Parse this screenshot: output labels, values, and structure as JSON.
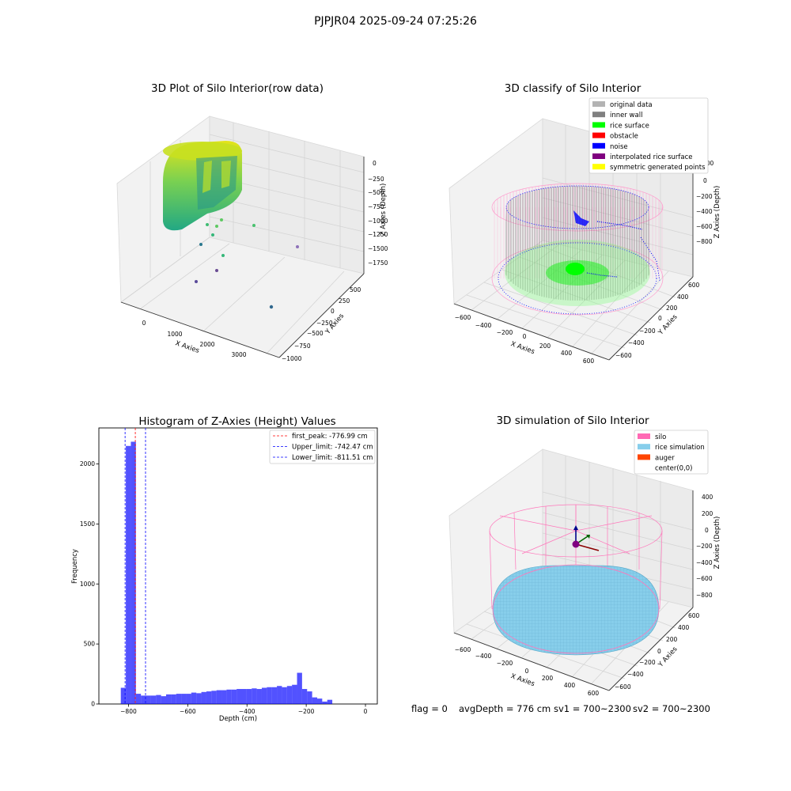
{
  "suptitle": "PJPJR04 2025-09-24 07:25:26",
  "panels": {
    "raw": {
      "title": "3D Plot of Silo Interior(row data)",
      "xlabel": "X Axies",
      "ylabel": "Y Axies",
      "zlabel": "Z Axies (Depth)",
      "xticks": [
        "0",
        "1000",
        "2000",
        "3000"
      ],
      "yticks": [
        "500",
        "250",
        "0",
        "−250",
        "−500",
        "−750",
        "−1000"
      ],
      "zticks": [
        "0",
        "−250",
        "−500",
        "−750",
        "−1000",
        "−1250",
        "−1500",
        "−1750"
      ]
    },
    "classify": {
      "title": "3D classify of Silo Interior",
      "xlabel": "X Axies",
      "ylabel": "Y Axies",
      "zlabel": "Z Axies (Depth)",
      "xticks": [
        "−600",
        "−400",
        "−200",
        "0",
        "200",
        "400",
        "600"
      ],
      "yticks": [
        "600",
        "400",
        "200",
        "0",
        "−200",
        "−400",
        "−600"
      ],
      "zticks": [
        "200",
        "0",
        "−200",
        "−400",
        "−600",
        "−800"
      ],
      "legend": [
        {
          "label": "original data",
          "color": "#b3b3b3"
        },
        {
          "label": "inner wall",
          "color": "#808080"
        },
        {
          "label": "rice surface",
          "color": "#00ff00"
        },
        {
          "label": "obstacle",
          "color": "#ff0000"
        },
        {
          "label": "noise",
          "color": "#0000ff"
        },
        {
          "label": "interpolated rice surface",
          "color": "#800080"
        },
        {
          "label": "symmetric generated points",
          "color": "#ffff00"
        }
      ],
      "extra_tick": "400"
    },
    "simulation": {
      "title": "3D simulation of Silo Interior",
      "xlabel": "X Axies",
      "ylabel": "Y Axies",
      "zlabel": "Z Axies (Depth)",
      "xticks": [
        "−600",
        "−400",
        "−200",
        "0",
        "200",
        "400",
        "600"
      ],
      "yticks": [
        "600",
        "400",
        "200",
        "0",
        "−200",
        "−400",
        "−600"
      ],
      "zticks": [
        "400",
        "200",
        "0",
        "−200",
        "−400",
        "−600",
        "−800"
      ],
      "legend": [
        {
          "label": "silo",
          "color": "#ff69b4"
        },
        {
          "label": "rice simulation",
          "color": "#87ceeb"
        },
        {
          "label": "auger",
          "color": "#ff4500"
        },
        {
          "label": "center(0,0)",
          "color": "#ffffff"
        }
      ]
    }
  },
  "chart_data": {
    "type": "bar",
    "title": "Histogram of Z-Axies (Height) Values",
    "xlabel": "Depth (cm)",
    "ylabel": "Frequency",
    "xlim": [
      -900,
      40
    ],
    "ylim": [
      0,
      2300
    ],
    "xticks": [
      -800,
      -600,
      -400,
      -200,
      0
    ],
    "yticks": [
      0,
      500,
      1000,
      1500,
      2000
    ],
    "bar_color": "#0000ff",
    "bin_width": 17,
    "bin_start": -826,
    "values": [
      135,
      2150,
      2185,
      85,
      70,
      70,
      70,
      75,
      65,
      80,
      80,
      85,
      85,
      85,
      95,
      90,
      100,
      105,
      110,
      115,
      115,
      120,
      120,
      125,
      125,
      125,
      130,
      125,
      135,
      140,
      140,
      150,
      140,
      150,
      160,
      260,
      125,
      105,
      55,
      45,
      20,
      35
    ],
    "lines": [
      {
        "label": "first_peak: -776.99 cm",
        "x": -776.99,
        "color": "#ff0000"
      },
      {
        "label": "Upper_limit: -742.47 cm",
        "x": -742.47,
        "color": "#0000ff"
      },
      {
        "label": "Lower_limit: -811.51 cm",
        "x": -811.51,
        "color": "#0000ff"
      }
    ],
    "legend_position": "top-right"
  },
  "footer": {
    "flag": "flag = 0",
    "avg": "avgDepth = 776 cm",
    "sv1": "sv1 = 700~2300",
    "sv2": "sv2 = 700~2300"
  }
}
